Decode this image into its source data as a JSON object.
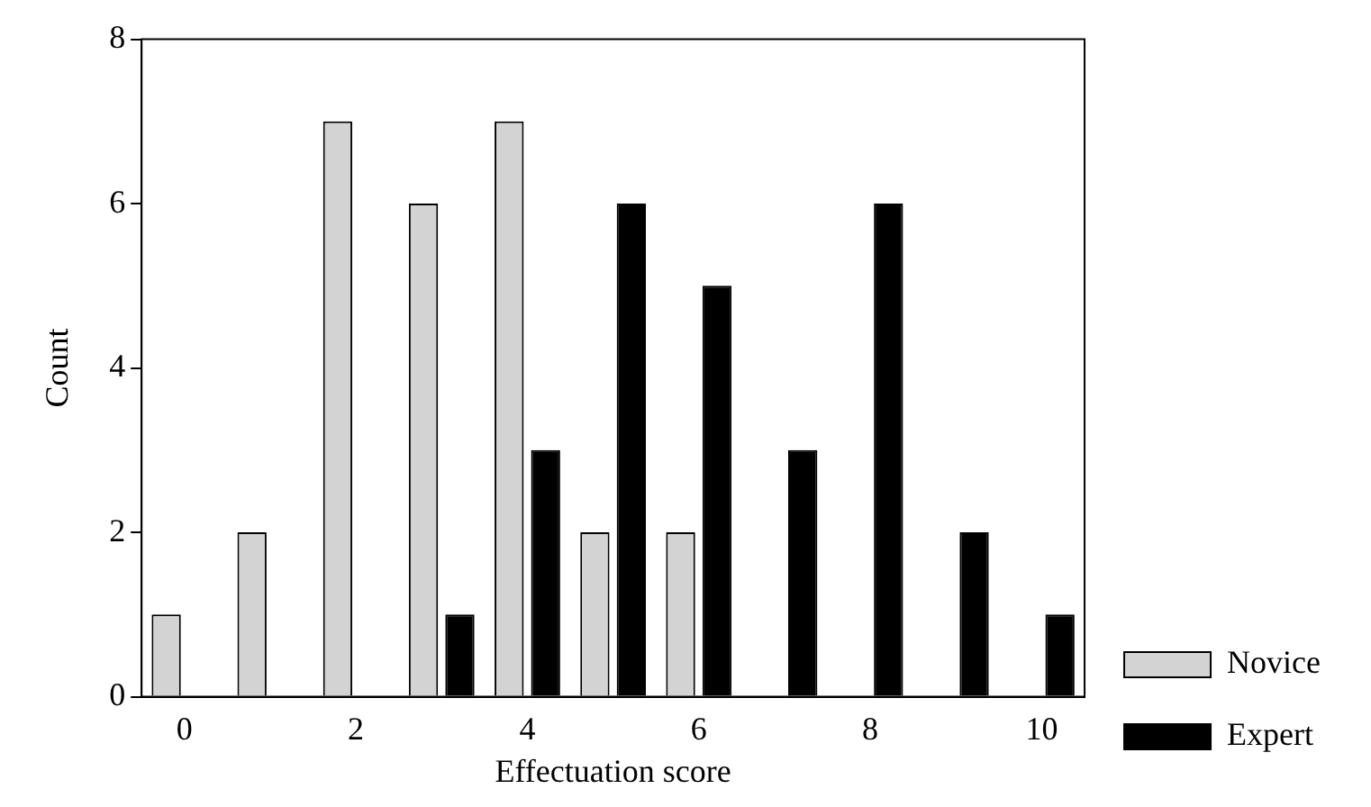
{
  "chart_data": {
    "type": "bar",
    "xlabel": "Effectuation score",
    "ylabel": "Count",
    "categories": [
      "0",
      null,
      "2",
      null,
      "4",
      null,
      "6",
      null,
      "8",
      null,
      "10"
    ],
    "series": [
      {
        "name": "Novice",
        "color": "#d3d3d3",
        "values": [
          1,
          2,
          7,
          6,
          7,
          2,
          2,
          0,
          0,
          0,
          0
        ]
      },
      {
        "name": "Expert",
        "color": "#000000",
        "values": [
          0,
          0,
          0,
          1,
          3,
          6,
          5,
          3,
          6,
          2,
          1
        ]
      }
    ],
    "ylim": [
      0,
      8
    ],
    "yticks": [
      0,
      2,
      4,
      6,
      8
    ],
    "grid": false,
    "legend": "bottom right"
  }
}
